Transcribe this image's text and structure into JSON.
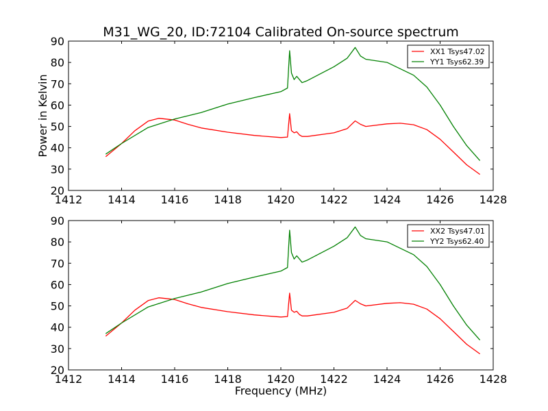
{
  "chart_data": [
    {
      "type": "line",
      "title": "M31_WG_20, ID:72104 Calibrated On-source spectrum",
      "xlabel": "",
      "ylabel": "Power in Kelvin",
      "xlim": [
        1412,
        1428
      ],
      "ylim": [
        20,
        90
      ],
      "xticks": [
        "1412",
        "1414",
        "1416",
        "1418",
        "1420",
        "1422",
        "1424",
        "1426",
        "1428"
      ],
      "yticks": [
        "20",
        "30",
        "40",
        "50",
        "60",
        "70",
        "80",
        "90"
      ],
      "legend_position": "top-right",
      "series": [
        {
          "name": "XX1 Tsys47.02",
          "color": "#ff0000",
          "x": [
            1413.4,
            1414,
            1414.5,
            1415,
            1415.4,
            1416,
            1416.5,
            1417,
            1418,
            1419,
            1420,
            1420.25,
            1420.33,
            1420.4,
            1420.5,
            1420.6,
            1420.7,
            1420.8,
            1421,
            1422,
            1422.5,
            1422.8,
            1423,
            1423.2,
            1424,
            1424.5,
            1425,
            1425.5,
            1426,
            1426.5,
            1427,
            1427.5
          ],
          "y": [
            35.8,
            42,
            48,
            52.5,
            53.8,
            53,
            51,
            49.3,
            47.3,
            45.8,
            44.8,
            45,
            56,
            48,
            47,
            47.5,
            46,
            45.3,
            45.3,
            47,
            49,
            52.6,
            51,
            50,
            51.2,
            51.5,
            50.8,
            48.5,
            44,
            38,
            32,
            27.5
          ]
        },
        {
          "name": "YY1 Tsys62.39",
          "color": "#008000",
          "x": [
            1413.4,
            1414,
            1415,
            1416,
            1417,
            1418,
            1419,
            1420,
            1420.25,
            1420.33,
            1420.4,
            1420.5,
            1420.6,
            1420.8,
            1421,
            1422,
            1422.5,
            1422.8,
            1423,
            1423.2,
            1424,
            1425,
            1425.5,
            1426,
            1426.5,
            1427,
            1427.5
          ],
          "y": [
            37,
            42,
            49.5,
            53.5,
            56.5,
            60.5,
            63.5,
            66.3,
            68,
            85.5,
            75,
            72,
            73.5,
            70.5,
            71.5,
            78,
            82,
            87,
            83,
            81.5,
            80,
            74,
            68.5,
            60,
            50,
            41,
            34
          ]
        }
      ]
    },
    {
      "type": "line",
      "title": "",
      "xlabel": "Frequency (MHz)",
      "ylabel": "",
      "xlim": [
        1412,
        1428
      ],
      "ylim": [
        20,
        90
      ],
      "xticks": [
        "1412",
        "1414",
        "1416",
        "1418",
        "1420",
        "1422",
        "1424",
        "1426",
        "1428"
      ],
      "yticks": [
        "20",
        "30",
        "40",
        "50",
        "60",
        "70",
        "80",
        "90"
      ],
      "legend_position": "top-right",
      "series": [
        {
          "name": "XX2 Tsys47.01",
          "color": "#ff0000",
          "x": [
            1413.4,
            1414,
            1414.5,
            1415,
            1415.4,
            1416,
            1416.5,
            1417,
            1418,
            1419,
            1420,
            1420.25,
            1420.33,
            1420.4,
            1420.5,
            1420.6,
            1420.7,
            1420.8,
            1421,
            1422,
            1422.5,
            1422.8,
            1423,
            1423.2,
            1424,
            1424.5,
            1425,
            1425.5,
            1426,
            1426.5,
            1427,
            1427.5
          ],
          "y": [
            35.8,
            42,
            48,
            52.5,
            53.8,
            53,
            51,
            49.3,
            47.3,
            45.8,
            44.8,
            45,
            56,
            48,
            47,
            47.5,
            46,
            45.3,
            45.3,
            47,
            49,
            52.6,
            51,
            50,
            51.2,
            51.5,
            50.8,
            48.5,
            44,
            38,
            32,
            27.5
          ]
        },
        {
          "name": "YY2 Tsys62.40",
          "color": "#008000",
          "x": [
            1413.4,
            1414,
            1415,
            1416,
            1417,
            1418,
            1419,
            1420,
            1420.25,
            1420.33,
            1420.4,
            1420.5,
            1420.6,
            1420.8,
            1421,
            1422,
            1422.5,
            1422.8,
            1423,
            1423.2,
            1424,
            1425,
            1425.5,
            1426,
            1426.5,
            1427,
            1427.5
          ],
          "y": [
            37,
            42,
            49.5,
            53.5,
            56.5,
            60.5,
            63.5,
            66.3,
            68,
            85.5,
            75,
            72,
            73.5,
            70.5,
            71.5,
            78,
            82,
            87,
            83,
            81.5,
            80,
            74,
            68.5,
            60,
            50,
            41,
            34
          ]
        }
      ]
    }
  ]
}
